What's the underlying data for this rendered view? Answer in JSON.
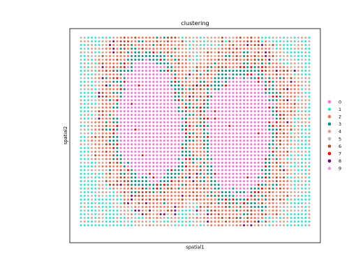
{
  "chart_data": {
    "type": "scatter",
    "title": "clustering",
    "xlabel": "spatial1",
    "ylabel": "spatial2",
    "grid": false,
    "legend_position": "right",
    "legend": [
      {
        "label": "0",
        "color": "#f07ad4"
      },
      {
        "label": "1",
        "color": "#3fe3d5"
      },
      {
        "label": "2",
        "color": "#f4785d"
      },
      {
        "label": "3",
        "color": "#148f86"
      },
      {
        "label": "4",
        "color": "#d8a98e"
      },
      {
        "label": "5",
        "color": "#bdbdbd"
      },
      {
        "label": "6",
        "color": "#a9522d"
      },
      {
        "label": "7",
        "color": "#e50d0d"
      },
      {
        "label": "8",
        "color": "#6a0f6e"
      },
      {
        "label": "9",
        "color": "#e99ae6"
      }
    ],
    "spot_grid": {
      "columns": 64,
      "rows": 52
    }
  }
}
